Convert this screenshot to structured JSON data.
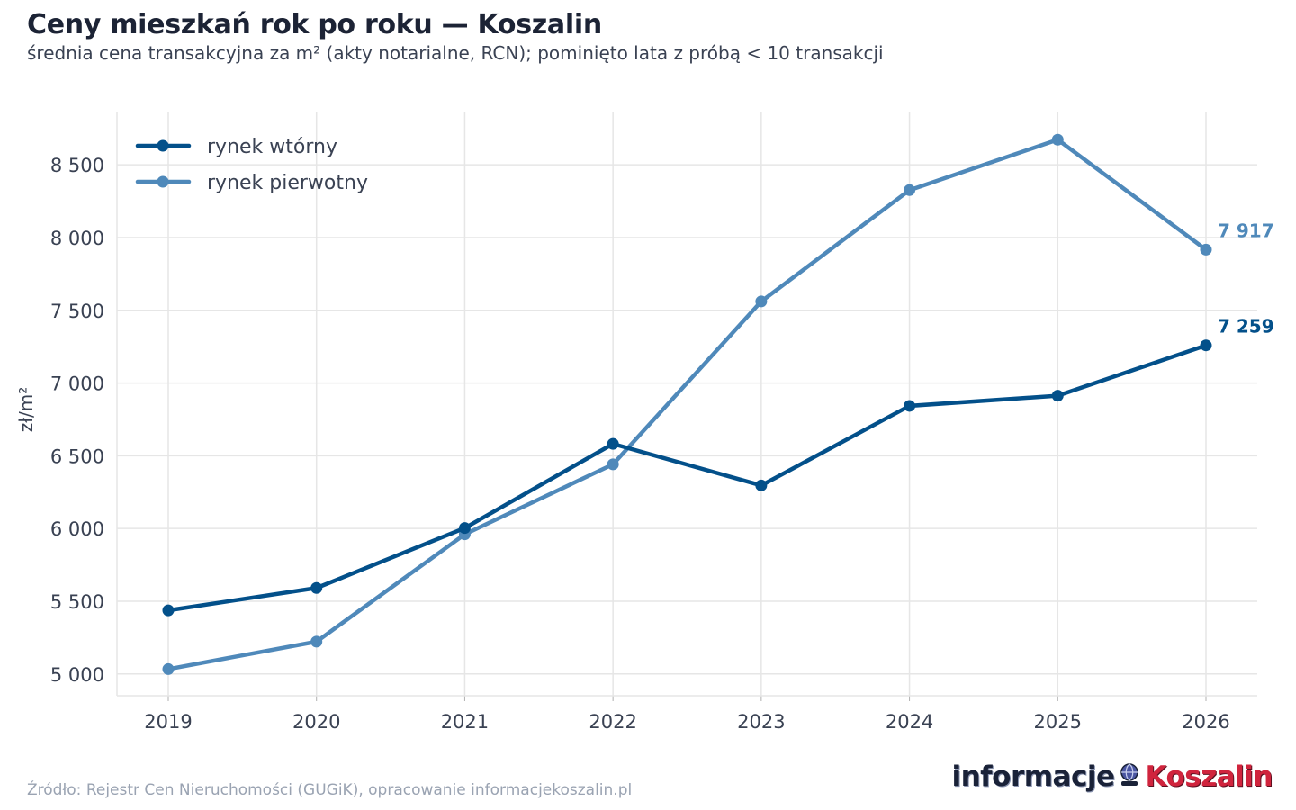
{
  "title": "Ceny mieszkań rok po roku — Koszalin",
  "subtitle": "średnia cena transakcyjna za m² (akty notarialne, RCN); pominięto lata z próbą < 10 transakcji",
  "source": "Źródło: Rejestr Cen Nieruchomości (GUGiK), opracowanie informacjekoszalin.pl",
  "logo": {
    "part1": "informacje",
    "part2": "Koszalin",
    "icon": "globe-icon"
  },
  "colors": {
    "secondary": "#03508a",
    "primary": "#4f89ba",
    "grid": "#e6e6e6",
    "text": "#3a4253"
  },
  "chart_data": {
    "type": "line",
    "x": [
      "2019",
      "2020",
      "2021",
      "2022",
      "2023",
      "2024",
      "2025",
      "2026"
    ],
    "series": [
      {
        "name": "rynek wtórny",
        "color": "#03508a",
        "values": [
          5437,
          5591,
          6003,
          6582,
          6296,
          6843,
          6913,
          7259
        ],
        "end_label": "7 259"
      },
      {
        "name": "rynek pierwotny",
        "color": "#4f89ba",
        "values": [
          5033,
          5222,
          5960,
          6441,
          7561,
          8326,
          8673,
          7917
        ],
        "end_label": "7 917"
      }
    ],
    "ylabel": "zł/m²",
    "ylim": [
      4850,
      8860
    ],
    "yticks": [
      5000,
      5500,
      6000,
      6500,
      7000,
      7500,
      8000,
      8500
    ],
    "ytick_labels": [
      "5 000",
      "5 500",
      "6 000",
      "6 500",
      "7 000",
      "7 500",
      "8 000",
      "8 500"
    ],
    "grid": true,
    "legend": "top-left"
  }
}
